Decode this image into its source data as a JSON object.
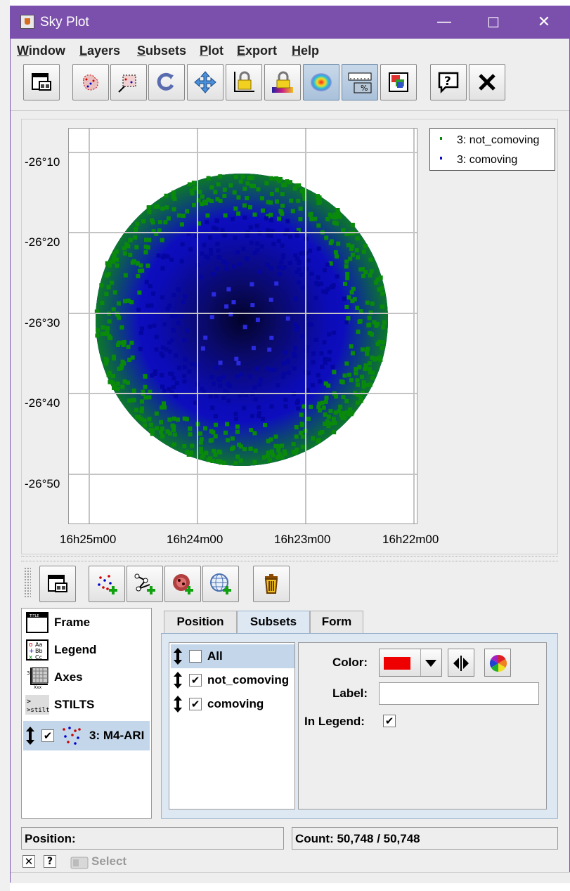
{
  "window": {
    "title": "Sky Plot",
    "minimize_symbol": "—",
    "maximize_symbol": "☐",
    "close_symbol": "✕"
  },
  "menus": [
    {
      "mnemonic": "W",
      "rest": "indow"
    },
    {
      "mnemonic": "L",
      "rest": "ayers"
    },
    {
      "mnemonic": "S",
      "rest": "ubsets"
    },
    {
      "mnemonic": "P",
      "rest": "lot"
    },
    {
      "mnemonic": "E",
      "rest": "xport"
    },
    {
      "mnemonic": "H",
      "rest": "elp"
    }
  ],
  "toolbar_icons": [
    "new-window-icon",
    "blob-subset-icon",
    "region-subset-icon",
    "replot-icon",
    "navigation-icon",
    "lock-axes-icon",
    "lock-aux-icon",
    "density-shading-icon",
    "axes-percent-icon",
    "export-image-icon",
    "help-icon",
    "close-icon"
  ],
  "plot": {
    "y_ticks": [
      "-26°10",
      "-26°20",
      "-26°30",
      "-26°40",
      "-26°50"
    ],
    "x_ticks": [
      "16h25m00",
      "16h24m00",
      "16h23m00",
      "16h22m00"
    ],
    "legend": [
      {
        "label": "3: not_comoving",
        "color": "#0a8a0a"
      },
      {
        "label": "3: comoving",
        "color": "#0a0acc"
      }
    ]
  },
  "control_toolbar_icons": [
    "frame-window-icon",
    "add-scatter-layer-icon",
    "add-line-layer-icon",
    "add-density-layer-icon",
    "add-sky-layer-icon",
    "delete-layer-icon"
  ],
  "controls": {
    "items": [
      "Frame",
      "Legend",
      "Axes",
      "STILTS"
    ],
    "layer_label": "3: M4-ARI",
    "layer_checked": "✔"
  },
  "tabs": [
    "Position",
    "Subsets",
    "Form"
  ],
  "subsets": [
    {
      "label": "All",
      "checked": ""
    },
    {
      "label": "not_comoving",
      "checked": "✔"
    },
    {
      "label": "comoving",
      "checked": "✔"
    }
  ],
  "form": {
    "color_label": "Color:",
    "color_value": "#ee0000",
    "label_label": "Label:",
    "label_value": "",
    "in_legend_label": "In Legend:",
    "in_legend_checked": "✔"
  },
  "status": {
    "position_label": "Position:",
    "count_text": "Count: 50,748 / 50,748",
    "select_label": "Select"
  },
  "colors": {
    "title_bar": "#7b4fac",
    "not_comoving": "#0a8a0a",
    "comoving": "#0a0acc"
  }
}
